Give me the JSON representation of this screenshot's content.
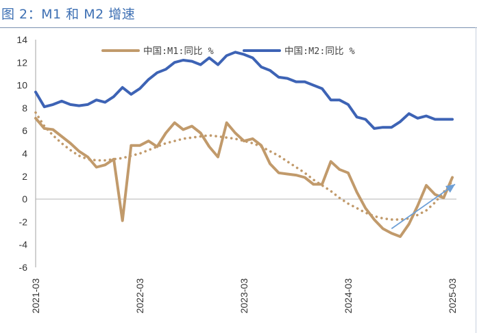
{
  "title": "图 2：M1 和 M2 增速",
  "chart_data": {
    "type": "line",
    "title": "图 2：M1 和 M2 增速",
    "xlabel": "",
    "ylabel": "",
    "ylim": [
      -6,
      14
    ],
    "yticks": [
      14,
      12,
      10,
      8,
      6,
      4,
      2,
      0,
      -2,
      -4,
      -6
    ],
    "x_tick_labels": [
      "2021-03",
      "2022-03",
      "2023-03",
      "2024-03",
      "2025-03"
    ],
    "x_tick_index": [
      0,
      12,
      24,
      36,
      48
    ],
    "legend_position": "top",
    "grid": false,
    "x": [
      "2021-03",
      "2021-04",
      "2021-05",
      "2021-06",
      "2021-07",
      "2021-08",
      "2021-09",
      "2021-10",
      "2021-11",
      "2021-12",
      "2022-01",
      "2022-02",
      "2022-03",
      "2022-04",
      "2022-05",
      "2022-06",
      "2022-07",
      "2022-08",
      "2022-09",
      "2022-10",
      "2022-11",
      "2022-12",
      "2023-01",
      "2023-02",
      "2023-03",
      "2023-04",
      "2023-05",
      "2023-06",
      "2023-07",
      "2023-08",
      "2023-09",
      "2023-10",
      "2023-11",
      "2023-12",
      "2024-01",
      "2024-02",
      "2024-03",
      "2024-04",
      "2024-05",
      "2024-06",
      "2024-07",
      "2024-08",
      "2024-09",
      "2024-10",
      "2024-11",
      "2024-12",
      "2025-01",
      "2025-02",
      "2025-03"
    ],
    "series": [
      {
        "name": "中国:M1:同比 %",
        "color": "#c19a6b",
        "values": [
          7.1,
          6.2,
          6.1,
          5.5,
          4.9,
          4.2,
          3.7,
          2.8,
          3.0,
          3.5,
          -1.9,
          4.7,
          4.7,
          5.1,
          4.6,
          5.8,
          6.7,
          6.1,
          6.4,
          5.8,
          4.6,
          3.7,
          6.7,
          5.8,
          5.1,
          5.3,
          4.7,
          3.1,
          2.3,
          2.2,
          2.1,
          1.9,
          1.3,
          1.3,
          3.3,
          2.6,
          2.3,
          0.6,
          -0.8,
          -1.8,
          -2.6,
          -3.0,
          -3.3,
          -2.2,
          -0.6,
          1.2,
          0.4,
          0.1,
          1.9
        ]
      },
      {
        "name": "中国:M2:同比 %",
        "color": "#3d63b5",
        "values": [
          9.4,
          8.1,
          8.3,
          8.6,
          8.3,
          8.2,
          8.3,
          8.7,
          8.5,
          9.0,
          9.8,
          9.2,
          9.7,
          10.5,
          11.1,
          11.4,
          12.0,
          12.2,
          12.1,
          11.8,
          12.4,
          11.8,
          12.6,
          12.9,
          12.7,
          12.4,
          11.6,
          11.3,
          10.7,
          10.6,
          10.3,
          10.3,
          10.0,
          9.7,
          8.7,
          8.7,
          8.3,
          7.2,
          7.0,
          6.2,
          6.3,
          6.3,
          6.8,
          7.5,
          7.1,
          7.3,
          7.0,
          7.0,
          7.0
        ]
      }
    ],
    "trend_line": {
      "style": "dotted",
      "color": "#c19a6b",
      "values": [
        7.6,
        6.4,
        5.6,
        4.9,
        4.3,
        3.8,
        3.5,
        3.4,
        3.4,
        3.5,
        3.6,
        3.8,
        4.0,
        4.3,
        4.6,
        4.9,
        5.1,
        5.3,
        5.4,
        5.5,
        5.6,
        5.5,
        5.4,
        5.3,
        5.1,
        4.9,
        4.6,
        4.2,
        3.8,
        3.3,
        2.8,
        2.3,
        1.7,
        1.2,
        0.7,
        0.1,
        -0.4,
        -0.8,
        -1.2,
        -1.5,
        -1.7,
        -1.8,
        -1.8,
        -1.7,
        -1.4,
        -1.0,
        -0.3,
        0.6,
        1.6
      ]
    },
    "arrow": {
      "color": "#6d9fd6",
      "from": [
        "2024-08",
        -2.6
      ],
      "to": [
        "2025-03",
        1.3
      ]
    }
  }
}
